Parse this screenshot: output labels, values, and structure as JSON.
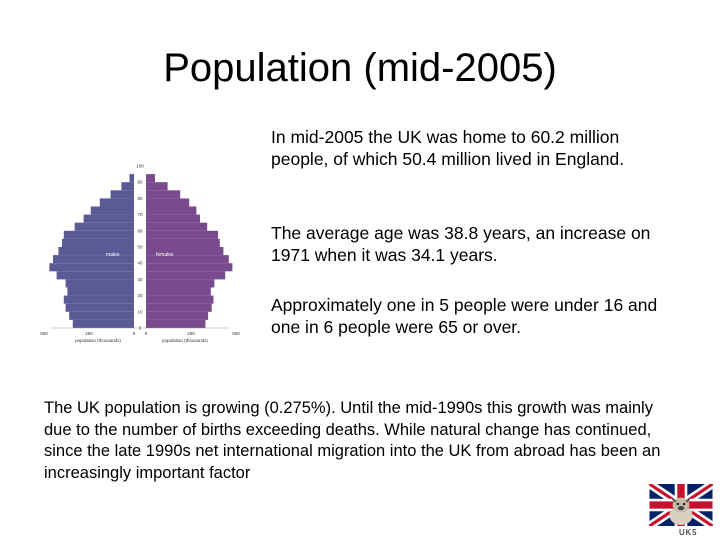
{
  "slide": {
    "title": "Population (mid-2005)",
    "paragraphs": [
      "In mid-2005 the UK was home to 60.2 million people, of which 50.4 million lived in England.",
      "The average age was 38.8 years, an increase on 1971 when it was 34.1 years.",
      "Approximately one in 5 people were under 16 and one in 6 people were 65 or over."
    ],
    "bottom_text": "The UK population is growing (0.275%). Until the mid-1990s this growth was mainly due to the number of births exceeding deaths. While natural change has continued, since the late 1990s net international migration into the UK from abroad has been an increasingly important factor",
    "footer_label": "UK5"
  },
  "chart_data": {
    "type": "bar",
    "orientation": "horizontal-population-pyramid",
    "ages": [
      0,
      5,
      10,
      15,
      20,
      25,
      30,
      35,
      40,
      45,
      50,
      55,
      60,
      65,
      70,
      75,
      80,
      85,
      90
    ],
    "age_tick_labels": [
      "0",
      "10",
      "20",
      "30",
      "40",
      "50",
      "60",
      "70",
      "80",
      "90",
      "100"
    ],
    "series": [
      {
        "name": "males",
        "color": "#5a5a96",
        "values": [
          340,
          360,
          380,
          390,
          370,
          380,
          430,
          470,
          450,
          420,
          400,
          390,
          330,
          280,
          240,
          190,
          130,
          70,
          25
        ]
      },
      {
        "name": "females",
        "color": "#7a4a8e",
        "values": [
          330,
          345,
          365,
          375,
          360,
          380,
          440,
          480,
          460,
          430,
          410,
          400,
          340,
          300,
          280,
          240,
          190,
          120,
          50
        ]
      }
    ],
    "x_tick_labels": [
      "500",
      "250",
      "0",
      "0",
      "250",
      "500"
    ],
    "xlim": [
      0,
      500
    ],
    "xlabel_left": "population (thousands)",
    "xlabel_right": "population (thousands)",
    "ylim": [
      0,
      100
    ],
    "grid": false,
    "legend": "inline"
  },
  "colors": {
    "males": "#5a5a96",
    "females": "#7a4a8e"
  },
  "icons": {
    "flag": "uk-flag-with-bulldog-icon"
  }
}
